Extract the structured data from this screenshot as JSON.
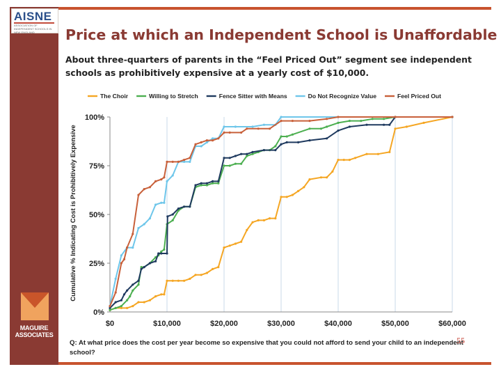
{
  "branding": {
    "top_logo": "AISNE",
    "top_logo_subtext": "ASSOCIATION OF INDEPENDENT SCHOOLS IN NEW ENGLAND",
    "bottom_logo": [
      "MAGUIRE",
      "ASSOCIATES"
    ],
    "accent_color": "#c8532e",
    "sidebar_color": "#8a3a33"
  },
  "slide": {
    "title": "Price at which an Independent School is Unaffordable",
    "subtitle": "About three-quarters of parents in the “Feel Priced Out” segment see independent schools as prohibitively expensive at a yearly cost of $10,000.",
    "question": "Q: At what price does the cost per year become so expensive that you could not afford to send your child to an independent school?",
    "page_number": "55"
  },
  "chart_data": {
    "type": "line",
    "title": "",
    "xlabel": "",
    "ylabel": "Cumulative % Indicating Cost is Prohibitively Expensive",
    "xlim": [
      0,
      60000
    ],
    "ylim": [
      0,
      100
    ],
    "x_ticks": [
      "$0",
      "$10,000",
      "$20,000",
      "$30,000",
      "$40,000",
      "$50,000",
      "$60,000"
    ],
    "y_ticks": [
      "0%",
      "25%",
      "50%",
      "75%",
      "100%"
    ],
    "grid": "vertical",
    "legend_position": "top",
    "series": [
      {
        "name": "The Choir",
        "color": "#f5a623",
        "points": [
          [
            0,
            1
          ],
          [
            1000,
            2
          ],
          [
            2000,
            2
          ],
          [
            3000,
            2
          ],
          [
            4000,
            3
          ],
          [
            5000,
            5
          ],
          [
            6000,
            5
          ],
          [
            7000,
            6
          ],
          [
            8000,
            8
          ],
          [
            9000,
            9
          ],
          [
            9500,
            9
          ],
          [
            10000,
            16
          ],
          [
            11000,
            16
          ],
          [
            12000,
            16
          ],
          [
            13000,
            16
          ],
          [
            14000,
            17
          ],
          [
            15000,
            19
          ],
          [
            16000,
            19
          ],
          [
            17000,
            20
          ],
          [
            18000,
            22
          ],
          [
            19000,
            23
          ],
          [
            20000,
            33
          ],
          [
            21000,
            34
          ],
          [
            22000,
            35
          ],
          [
            23000,
            36
          ],
          [
            24000,
            42
          ],
          [
            25000,
            46
          ],
          [
            26000,
            47
          ],
          [
            27000,
            47
          ],
          [
            28000,
            48
          ],
          [
            29000,
            48
          ],
          [
            30000,
            59
          ],
          [
            31000,
            59
          ],
          [
            32000,
            60
          ],
          [
            33000,
            62
          ],
          [
            34000,
            64
          ],
          [
            35000,
            68
          ],
          [
            37000,
            69
          ],
          [
            38000,
            69
          ],
          [
            39000,
            72
          ],
          [
            40000,
            78
          ],
          [
            41000,
            78
          ],
          [
            42000,
            78
          ],
          [
            43000,
            79
          ],
          [
            45000,
            81
          ],
          [
            47000,
            81
          ],
          [
            49000,
            82
          ],
          [
            50000,
            94
          ],
          [
            52000,
            95
          ],
          [
            55000,
            97
          ],
          [
            60000,
            100
          ]
        ]
      },
      {
        "name": "Willing to Stretch",
        "color": "#4caf50",
        "points": [
          [
            0,
            1
          ],
          [
            1000,
            2
          ],
          [
            2000,
            3
          ],
          [
            3000,
            6
          ],
          [
            3500,
            8
          ],
          [
            4000,
            11
          ],
          [
            5000,
            14
          ],
          [
            5500,
            23
          ],
          [
            6000,
            23
          ],
          [
            7000,
            25
          ],
          [
            8000,
            28
          ],
          [
            8500,
            29
          ],
          [
            9000,
            31
          ],
          [
            9500,
            32
          ],
          [
            10000,
            45
          ],
          [
            11000,
            47
          ],
          [
            12000,
            52
          ],
          [
            13000,
            54
          ],
          [
            14000,
            54
          ],
          [
            15000,
            64
          ],
          [
            16000,
            65
          ],
          [
            17000,
            65
          ],
          [
            18000,
            66
          ],
          [
            19000,
            66
          ],
          [
            20000,
            75
          ],
          [
            21000,
            75
          ],
          [
            22000,
            76
          ],
          [
            23000,
            76
          ],
          [
            24000,
            80
          ],
          [
            25000,
            81
          ],
          [
            26000,
            82
          ],
          [
            27000,
            83
          ],
          [
            28000,
            83
          ],
          [
            29000,
            85
          ],
          [
            30000,
            90
          ],
          [
            31000,
            90
          ],
          [
            32000,
            91
          ],
          [
            35000,
            94
          ],
          [
            37000,
            94
          ],
          [
            38000,
            95
          ],
          [
            40000,
            97
          ],
          [
            42000,
            98
          ],
          [
            44000,
            98
          ],
          [
            46000,
            99
          ],
          [
            48000,
            99
          ],
          [
            50000,
            100
          ],
          [
            60000,
            100
          ]
        ]
      },
      {
        "name": "Fence Sitter with Means",
        "color": "#1f3a5f",
        "points": [
          [
            0,
            2
          ],
          [
            1000,
            5
          ],
          [
            2000,
            6
          ],
          [
            2500,
            9
          ],
          [
            3000,
            11
          ],
          [
            4000,
            14
          ],
          [
            5000,
            16
          ],
          [
            5500,
            22
          ],
          [
            6000,
            23
          ],
          [
            7000,
            25
          ],
          [
            8000,
            26
          ],
          [
            8500,
            30
          ],
          [
            9000,
            30
          ],
          [
            10000,
            30
          ],
          [
            10100,
            49
          ],
          [
            11000,
            50
          ],
          [
            12000,
            53
          ],
          [
            13000,
            54
          ],
          [
            14000,
            54
          ],
          [
            15000,
            65
          ],
          [
            16000,
            66
          ],
          [
            17000,
            66
          ],
          [
            18000,
            67
          ],
          [
            19000,
            67
          ],
          [
            20000,
            79
          ],
          [
            21000,
            79
          ],
          [
            22000,
            80
          ],
          [
            23000,
            81
          ],
          [
            24000,
            81
          ],
          [
            25000,
            82
          ],
          [
            27000,
            83
          ],
          [
            29000,
            83
          ],
          [
            30000,
            86
          ],
          [
            31000,
            87
          ],
          [
            33000,
            87
          ],
          [
            35000,
            88
          ],
          [
            38000,
            89
          ],
          [
            40000,
            93
          ],
          [
            42000,
            95
          ],
          [
            45000,
            96
          ],
          [
            48000,
            96
          ],
          [
            49000,
            96
          ],
          [
            50000,
            100
          ],
          [
            60000,
            100
          ]
        ]
      },
      {
        "name": "Do Not Recognize Value",
        "color": "#6ec6ea",
        "points": [
          [
            0,
            3
          ],
          [
            1000,
            17
          ],
          [
            2000,
            29
          ],
          [
            3000,
            33
          ],
          [
            4000,
            33
          ],
          [
            5000,
            43
          ],
          [
            6000,
            45
          ],
          [
            7000,
            48
          ],
          [
            8000,
            55
          ],
          [
            9000,
            56
          ],
          [
            9500,
            56
          ],
          [
            10000,
            67
          ],
          [
            11000,
            70
          ],
          [
            12000,
            77
          ],
          [
            13000,
            77
          ],
          [
            14000,
            77
          ],
          [
            15000,
            85
          ],
          [
            16000,
            85
          ],
          [
            17000,
            87
          ],
          [
            18000,
            89
          ],
          [
            19000,
            89
          ],
          [
            20000,
            95
          ],
          [
            22000,
            95
          ],
          [
            25000,
            95
          ],
          [
            27000,
            96
          ],
          [
            29000,
            96
          ],
          [
            30000,
            100
          ],
          [
            40000,
            100
          ],
          [
            50000,
            100
          ],
          [
            60000,
            100
          ]
        ]
      },
      {
        "name": "Feel Priced Out",
        "color": "#c8603a",
        "points": [
          [
            0,
            3
          ],
          [
            1000,
            10
          ],
          [
            2000,
            25
          ],
          [
            2500,
            27
          ],
          [
            3000,
            33
          ],
          [
            4000,
            40
          ],
          [
            5000,
            60
          ],
          [
            6000,
            63
          ],
          [
            7000,
            64
          ],
          [
            8000,
            67
          ],
          [
            9000,
            68
          ],
          [
            9500,
            69
          ],
          [
            10000,
            77
          ],
          [
            11000,
            77
          ],
          [
            12000,
            77
          ],
          [
            13000,
            78
          ],
          [
            14000,
            79
          ],
          [
            15000,
            86
          ],
          [
            16000,
            87
          ],
          [
            17000,
            88
          ],
          [
            18000,
            88
          ],
          [
            19000,
            89
          ],
          [
            20000,
            92
          ],
          [
            21000,
            92
          ],
          [
            23000,
            92
          ],
          [
            24000,
            94
          ],
          [
            26000,
            94
          ],
          [
            28000,
            94
          ],
          [
            30000,
            98
          ],
          [
            32000,
            98
          ],
          [
            35000,
            98
          ],
          [
            38000,
            99
          ],
          [
            40000,
            100
          ],
          [
            50000,
            100
          ],
          [
            60000,
            100
          ]
        ]
      }
    ]
  }
}
